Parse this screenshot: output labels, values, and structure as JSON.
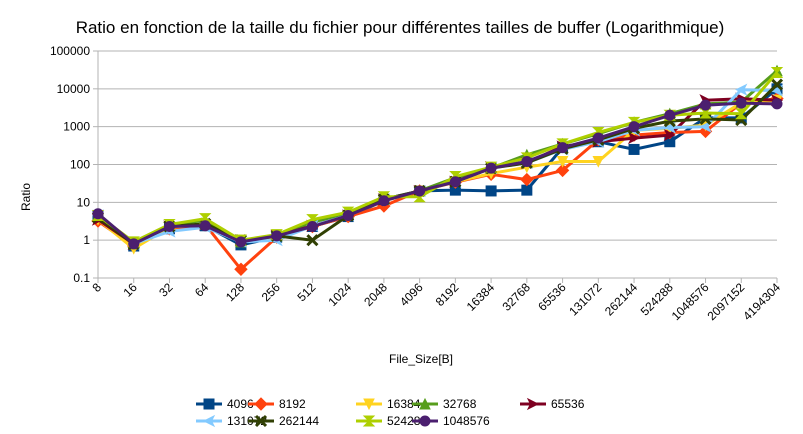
{
  "chart_data": {
    "type": "line",
    "title": "Ratio en fonction de la taille du fichier pour différentes tailles de buffer (Logarithmique)",
    "xlabel": "File_Size[B]",
    "ylabel": "Ratio",
    "y_scale": "log",
    "ylim": [
      0.1,
      100000
    ],
    "y_ticks": [
      "0.1",
      "1",
      "10",
      "100",
      "1000",
      "10000",
      "100000"
    ],
    "grid": "horizontal",
    "legend_position": "bottom",
    "categories": [
      "8",
      "16",
      "32",
      "64",
      "128",
      "256",
      "512",
      "1024",
      "2048",
      "4096",
      "8192",
      "16384",
      "32768",
      "65536",
      "131072",
      "262144",
      "524288",
      "1048576",
      "2097152",
      "4194304"
    ],
    "series": [
      {
        "name": "4096",
        "color": "#004586",
        "marker": "square",
        "values": [
          4.5,
          0.7,
          2.0,
          2.4,
          0.75,
          1.2,
          2.3,
          4.2,
          11,
          20,
          21,
          20,
          21,
          280,
          400,
          250,
          400,
          1700,
          1700,
          10000
        ]
      },
      {
        "name": "8192",
        "color": "#ff420e",
        "marker": "diamond",
        "values": [
          3.2,
          0.7,
          2.0,
          2.6,
          0.17,
          1.2,
          2.3,
          4.2,
          8,
          20,
          34,
          55,
          40,
          70,
          450,
          600,
          700,
          750,
          4200,
          5500
        ]
      },
      {
        "name": "16384",
        "color": "#ffd320",
        "marker": "triangle-down",
        "values": [
          3.5,
          0.6,
          2.2,
          2.6,
          1.0,
          1.2,
          2.4,
          4.5,
          11,
          20,
          35,
          58,
          85,
          120,
          120,
          800,
          900,
          1100,
          4300,
          5000
        ]
      },
      {
        "name": "32768",
        "color": "#579d1c",
        "marker": "triangle-up",
        "values": [
          4.5,
          0.8,
          2.5,
          3.4,
          0.9,
          1.3,
          3.0,
          5.0,
          12,
          20,
          45,
          80,
          180,
          350,
          650,
          1300,
          2200,
          4000,
          4500,
          30000
        ]
      },
      {
        "name": "65536",
        "color": "#7e0021",
        "marker": "arrow",
        "values": [
          3.5,
          0.8,
          2.3,
          2.6,
          1.0,
          1.3,
          2.4,
          4.5,
          12,
          20,
          35,
          85,
          110,
          300,
          400,
          500,
          600,
          5000,
          5500,
          5000
        ]
      },
      {
        "name": "131072",
        "color": "#83caff",
        "marker": "arrow-left",
        "values": [
          4.5,
          0.8,
          1.7,
          2.2,
          0.9,
          1.0,
          2.4,
          4.5,
          12,
          20,
          35,
          80,
          110,
          250,
          400,
          800,
          950,
          1000,
          9500,
          9000
        ]
      },
      {
        "name": "262144",
        "color": "#314004",
        "marker": "x",
        "values": [
          4.0,
          0.8,
          2.3,
          2.7,
          1.0,
          1.3,
          1.0,
          4.5,
          12,
          20,
          35,
          80,
          110,
          260,
          450,
          900,
          1400,
          1600,
          1500,
          13000
        ]
      },
      {
        "name": "524288",
        "color": "#aecf00",
        "marker": "hourglass",
        "values": [
          4.5,
          0.9,
          2.6,
          3.7,
          1.0,
          1.4,
          3.5,
          5.5,
          14,
          14,
          48,
          85,
          150,
          350,
          700,
          1300,
          2000,
          2300,
          2200,
          27000
        ]
      },
      {
        "name": "1048576",
        "color": "#4b1f6f",
        "marker": "circle",
        "values": [
          5.0,
          0.8,
          2.3,
          2.4,
          0.9,
          1.3,
          2.3,
          4.5,
          11,
          20,
          35,
          80,
          120,
          280,
          500,
          1000,
          2000,
          3700,
          4200,
          4000
        ]
      }
    ]
  }
}
